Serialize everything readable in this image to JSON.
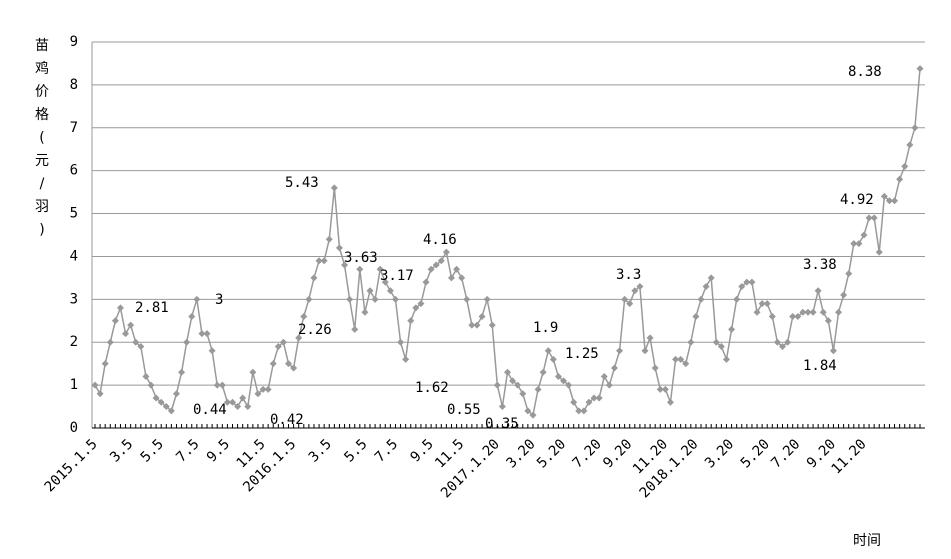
{
  "chart_data": {
    "type": "line",
    "y_label": "苗鸡价格(元/羽)",
    "x_label": "时间",
    "categories": [
      "2015.1.5",
      null,
      null,
      null,
      null,
      null,
      null,
      "3.5",
      null,
      null,
      null,
      null,
      null,
      "5.5",
      null,
      null,
      null,
      null,
      null,
      null,
      "7.5",
      null,
      null,
      null,
      null,
      null,
      "9.5",
      null,
      null,
      null,
      null,
      null,
      null,
      "11.5",
      null,
      null,
      null,
      null,
      null,
      "2016.1.5",
      null,
      null,
      null,
      null,
      null,
      null,
      "3.5",
      null,
      null,
      null,
      null,
      null,
      null,
      "5.5",
      null,
      null,
      null,
      null,
      null,
      "7.5",
      null,
      null,
      null,
      null,
      null,
      null,
      "9.5",
      null,
      null,
      null,
      null,
      null,
      "11.5",
      null,
      null,
      null,
      null,
      null,
      null,
      "2017.1.20",
      null,
      null,
      null,
      null,
      null,
      null,
      "3.20",
      null,
      null,
      null,
      null,
      null,
      "5.20",
      null,
      null,
      null,
      null,
      null,
      null,
      "7.20",
      null,
      null,
      null,
      null,
      null,
      "9.20",
      null,
      null,
      null,
      null,
      null,
      null,
      "11.20",
      null,
      null,
      null,
      null,
      null,
      "2018.1.20",
      null,
      null,
      null,
      null,
      null,
      null,
      "3.20",
      null,
      null,
      null,
      null,
      null,
      null,
      "5.20",
      null,
      null,
      null,
      null,
      null,
      "7.20",
      null,
      null,
      null,
      null,
      null,
      null,
      "9.20",
      null,
      null,
      null,
      null,
      null,
      "11.20",
      null,
      null,
      null,
      null,
      null,
      null,
      null,
      null,
      null,
      null,
      null
    ],
    "series": [
      {
        "color": "#999999",
        "values": [
          1.0,
          0.8,
          1.5,
          2.0,
          2.5,
          2.8,
          2.2,
          2.4,
          2.0,
          1.9,
          1.2,
          1.0,
          0.7,
          0.6,
          0.5,
          0.4,
          0.8,
          1.3,
          2.0,
          2.6,
          3.0,
          2.2,
          2.2,
          1.8,
          1.0,
          1.0,
          0.6,
          0.6,
          0.5,
          0.7,
          0.5,
          1.3,
          0.8,
          0.9,
          0.9,
          1.5,
          1.9,
          2.0,
          1.5,
          1.4,
          2.1,
          2.6,
          3.0,
          3.5,
          3.9,
          3.9,
          4.4,
          5.6,
          4.2,
          3.8,
          3.0,
          2.3,
          3.7,
          2.7,
          3.2,
          3.0,
          3.7,
          3.4,
          3.2,
          3.0,
          2.0,
          1.6,
          2.5,
          2.8,
          2.9,
          3.4,
          3.7,
          3.8,
          3.9,
          4.1,
          3.5,
          3.7,
          3.5,
          3.0,
          2.4,
          2.4,
          2.6,
          3.0,
          2.4,
          1.0,
          0.5,
          1.3,
          1.1,
          1.0,
          0.8,
          0.4,
          0.3,
          0.9,
          1.3,
          1.8,
          1.6,
          1.2,
          1.1,
          1.0,
          0.6,
          0.4,
          0.4,
          0.6,
          0.7,
          0.7,
          1.2,
          1.0,
          1.4,
          1.8,
          3.0,
          2.9,
          3.2,
          3.3,
          1.8,
          2.1,
          1.4,
          0.9,
          0.9,
          0.6,
          1.6,
          1.6,
          1.5,
          2.0,
          2.6,
          3.0,
          3.3,
          3.5,
          2.0,
          1.9,
          1.6,
          2.3,
          3.0,
          3.3,
          3.4,
          3.4,
          2.7,
          2.9,
          2.9,
          2.6,
          2.0,
          1.9,
          2.0,
          2.6,
          2.6,
          2.7,
          2.7,
          2.7,
          3.2,
          2.7,
          2.5,
          1.8,
          2.7,
          3.1,
          3.6,
          4.3,
          4.3,
          4.5,
          4.9,
          4.9,
          4.1,
          5.4,
          5.3,
          5.3,
          5.8,
          6.1,
          6.6,
          7.0,
          8.38
        ]
      }
    ],
    "annotations": [
      2.81,
      0.44,
      3,
      0.42,
      2.26,
      5.43,
      3.63,
      3.17,
      4.16,
      1.62,
      0.55,
      0.35,
      1.9,
      1.25,
      3.3,
      3.38,
      1.84,
      4.92,
      8.38
    ],
    "ylim": [
      0,
      9
    ],
    "yticks": [
      0,
      1,
      2,
      3,
      4,
      5,
      6,
      7,
      8,
      9
    ],
    "grid": true
  }
}
